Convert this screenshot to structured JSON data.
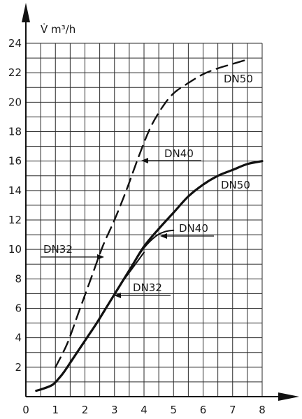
{
  "chart_data": {
    "type": "line",
    "title": "",
    "xlabel": "",
    "ylabel": "V̇ m³/h",
    "xlim": [
      0,
      8
    ],
    "ylim": [
      0,
      24
    ],
    "x_ticks": [
      0,
      1,
      2,
      3,
      4,
      5,
      6,
      7,
      8
    ],
    "y_ticks": [
      2,
      4,
      6,
      8,
      10,
      12,
      14,
      16,
      18,
      20,
      22,
      24
    ],
    "grid": true,
    "series": [
      {
        "name": "DN50",
        "style": "dashed",
        "x": [
          1.0,
          1.4,
          1.8,
          2.2,
          2.6,
          3.0,
          3.4,
          3.8,
          4.2,
          4.6,
          5.0,
          5.5,
          6.0,
          6.5,
          7.0,
          7.5
        ],
        "y": [
          2.0,
          3.6,
          5.8,
          8.0,
          10.2,
          12.0,
          14.0,
          16.2,
          18.2,
          19.6,
          20.6,
          21.3,
          21.9,
          22.3,
          22.6,
          22.9
        ]
      },
      {
        "name": "DN50",
        "style": "solid-bold",
        "x": [
          0.35,
          0.6,
          0.9,
          1.1,
          1.3,
          1.6,
          2.0,
          2.4,
          2.8,
          3.2,
          3.6,
          4.0,
          4.5,
          5.0,
          5.5,
          6.0,
          6.5,
          7.0,
          7.5,
          8.0
        ],
        "y": [
          0.4,
          0.55,
          0.8,
          1.2,
          1.7,
          2.6,
          3.8,
          5.0,
          6.3,
          7.6,
          8.9,
          10.2,
          11.4,
          12.5,
          13.6,
          14.4,
          15.0,
          15.4,
          15.8,
          16.0
        ]
      },
      {
        "name": "DN40",
        "style": "solid",
        "x": [
          0.35,
          0.6,
          0.9,
          1.1,
          1.3,
          1.6,
          2.0,
          2.4,
          2.8,
          3.2,
          3.6,
          4.0,
          4.4,
          4.7,
          5.0
        ],
        "y": [
          0.4,
          0.55,
          0.8,
          1.2,
          1.7,
          2.6,
          3.8,
          5.0,
          6.3,
          7.6,
          8.9,
          10.1,
          10.9,
          11.2,
          11.3
        ]
      },
      {
        "name": "DN32",
        "style": "solid",
        "x": [
          0.35,
          0.6,
          0.9,
          1.1,
          1.3,
          1.6,
          2.0,
          2.4,
          2.8,
          3.2,
          3.6,
          4.0
        ],
        "y": [
          0.4,
          0.55,
          0.8,
          1.2,
          1.7,
          2.6,
          3.8,
          5.0,
          6.3,
          7.6,
          8.7,
          9.8
        ]
      }
    ],
    "annotations": [
      {
        "text": "DN50",
        "target_series": 0
      },
      {
        "text": "DN40",
        "target_series": 0
      },
      {
        "text": "DN32",
        "target_series": 0
      },
      {
        "text": "DN50",
        "target_series": 1
      },
      {
        "text": "DN40",
        "target_series": 2
      },
      {
        "text": "DN32",
        "target_series": 3
      }
    ]
  }
}
